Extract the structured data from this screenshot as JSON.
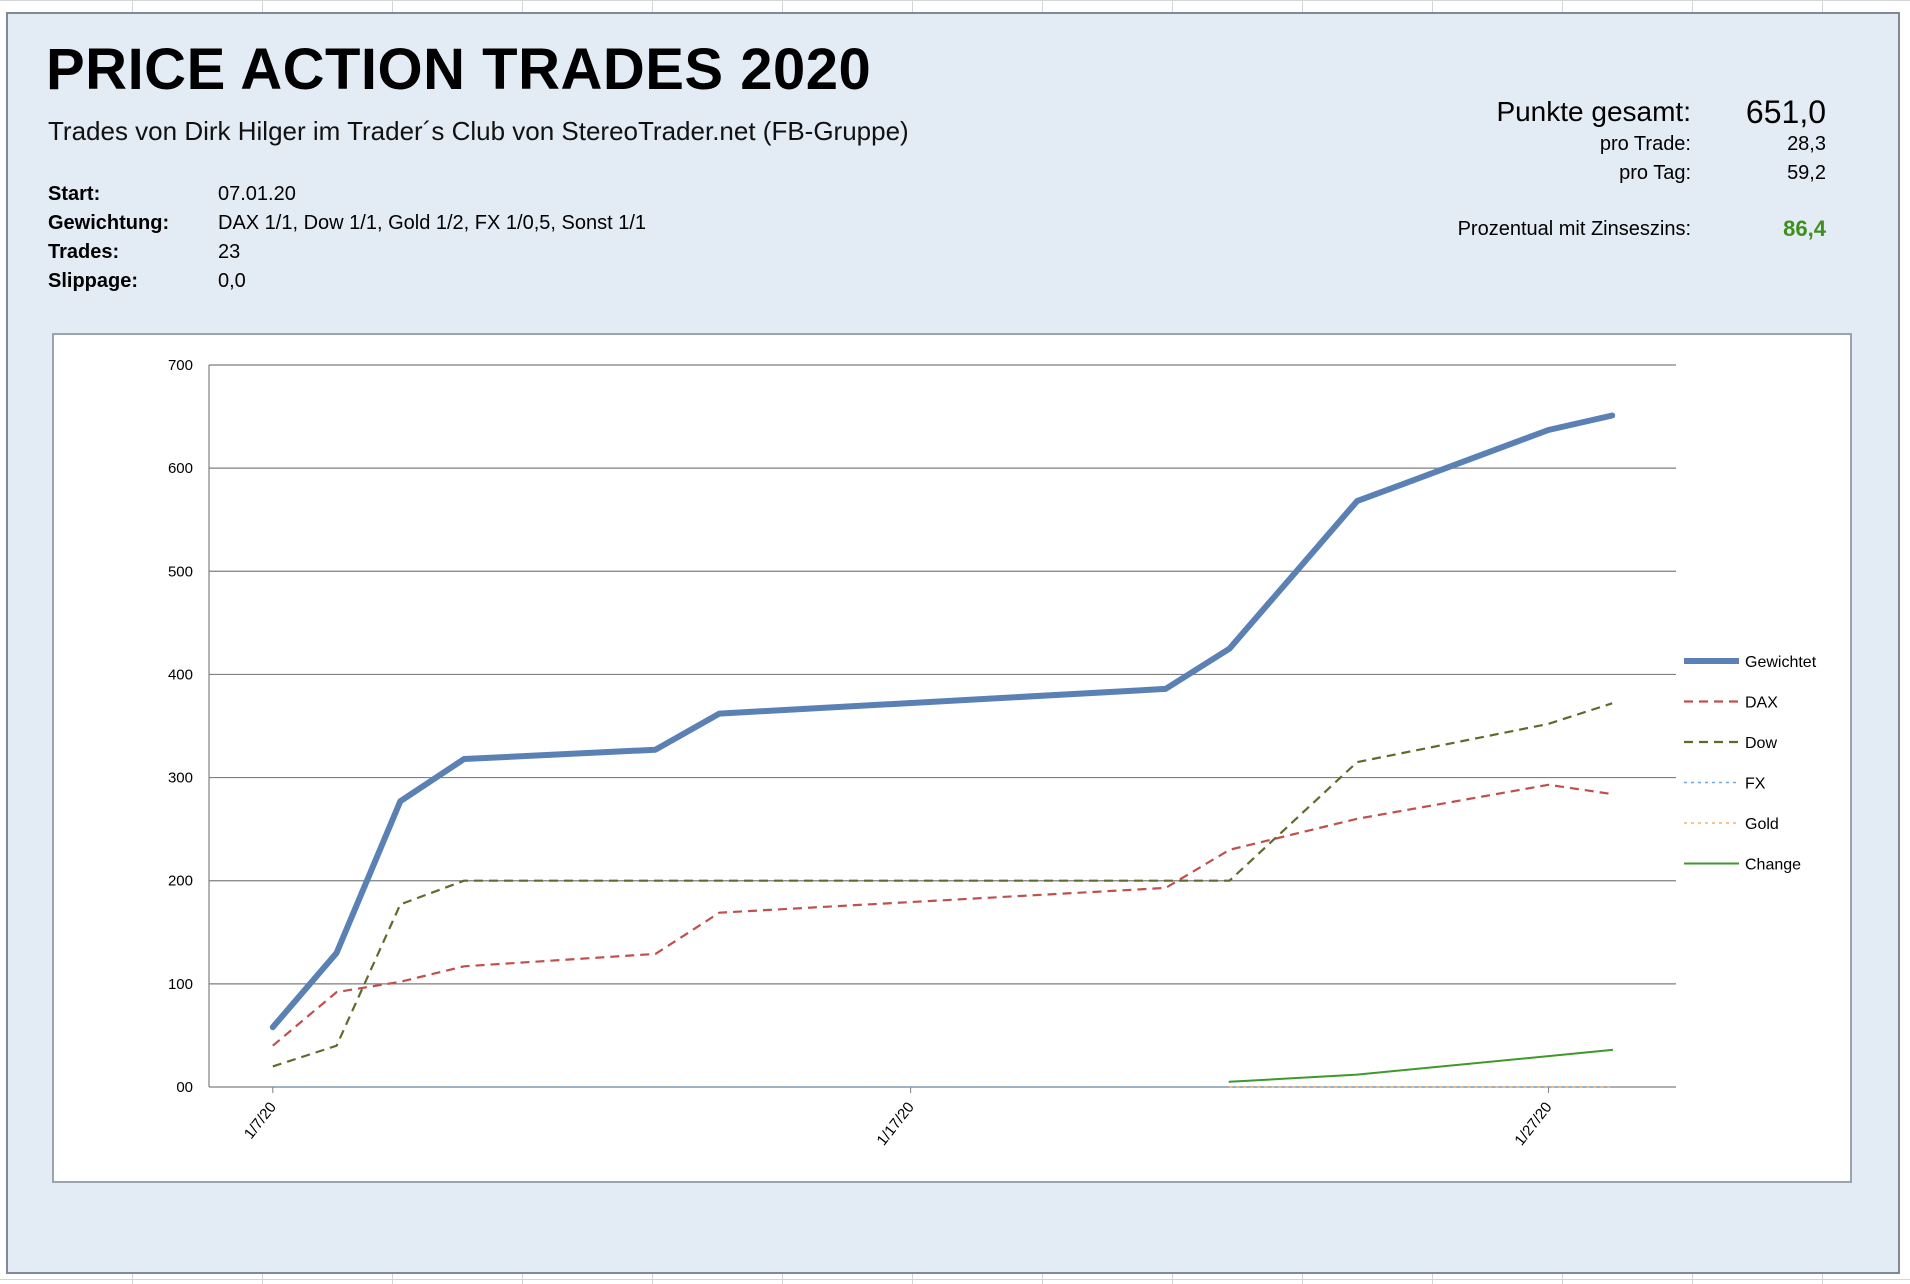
{
  "header": {
    "title": "PRICE ACTION TRADES 2020",
    "subtitle": "Trades von Dirk Hilger im Trader´s Club von StereoTrader.net (FB-Gruppe)"
  },
  "meta": [
    {
      "label": "Start:",
      "value": "07.01.20"
    },
    {
      "label": "Gewichtung:",
      "value": "DAX 1/1, Dow 1/1, Gold 1/2, FX 1/0,5, Sonst 1/1"
    },
    {
      "label": "Trades:",
      "value": "23"
    },
    {
      "label": "Slippage:",
      "value": "0,0"
    }
  ],
  "stats": {
    "total_label": "Punkte gesamt:",
    "total_value": "651,0",
    "per_trade_label": "pro Trade:",
    "per_trade_value": "28,3",
    "per_day_label": "pro Tag:",
    "per_day_value": "59,2",
    "percent_label": "Prozentual mit Zinseszins:",
    "percent_value": "86,4"
  },
  "colors": {
    "gewichtet": "#5a80b4",
    "dax": "#c0504d",
    "dow": "#5e6b2b",
    "fx": "#6fa8dc",
    "gold": "#f6b26b",
    "change": "#3d9a2a",
    "accent_green": "#3f8f1f"
  },
  "chart_data": {
    "type": "line",
    "title": "",
    "xlabel": "",
    "ylabel": "",
    "x_ticks": [
      {
        "date": "2020-01-07",
        "label": "1/7/20"
      },
      {
        "date": "2020-01-17",
        "label": "1/17/20"
      },
      {
        "date": "2020-01-27",
        "label": "1/27/20"
      }
    ],
    "xlim": [
      "2020-01-06",
      "2020-01-29"
    ],
    "y_ticks": [
      "00",
      "100",
      "200",
      "300",
      "400",
      "500",
      "600",
      "700"
    ],
    "ylim": [
      0,
      700
    ],
    "grid": "horizontal",
    "legend_position": "right",
    "series": [
      {
        "name": "Gewichtet",
        "style": "solid-thick",
        "points": [
          [
            "2020-01-07",
            58
          ],
          [
            "2020-01-08",
            130
          ],
          [
            "2020-01-09",
            277
          ],
          [
            "2020-01-10",
            318
          ],
          [
            "2020-01-13",
            327
          ],
          [
            "2020-01-14",
            362
          ],
          [
            "2020-01-21",
            386
          ],
          [
            "2020-01-22",
            425
          ],
          [
            "2020-01-24",
            568
          ],
          [
            "2020-01-27",
            637
          ],
          [
            "2020-01-28",
            651
          ]
        ]
      },
      {
        "name": "DAX",
        "style": "dashed",
        "points": [
          [
            "2020-01-07",
            40
          ],
          [
            "2020-01-08",
            92
          ],
          [
            "2020-01-09",
            102
          ],
          [
            "2020-01-10",
            117
          ],
          [
            "2020-01-13",
            129
          ],
          [
            "2020-01-14",
            169
          ],
          [
            "2020-01-21",
            193
          ],
          [
            "2020-01-22",
            230
          ],
          [
            "2020-01-24",
            260
          ],
          [
            "2020-01-27",
            293
          ],
          [
            "2020-01-28",
            284
          ]
        ]
      },
      {
        "name": "Dow",
        "style": "dashed",
        "points": [
          [
            "2020-01-07",
            20
          ],
          [
            "2020-01-08",
            40
          ],
          [
            "2020-01-09",
            177
          ],
          [
            "2020-01-10",
            200
          ],
          [
            "2020-01-13",
            200
          ],
          [
            "2020-01-14",
            200
          ],
          [
            "2020-01-21",
            200
          ],
          [
            "2020-01-22",
            200
          ],
          [
            "2020-01-24",
            315
          ],
          [
            "2020-01-27",
            352
          ],
          [
            "2020-01-28",
            372
          ]
        ]
      },
      {
        "name": "FX",
        "style": "dotted",
        "points": [
          [
            "2020-01-07",
            0
          ],
          [
            "2020-01-28",
            0
          ]
        ]
      },
      {
        "name": "Gold",
        "style": "dotted",
        "points": [
          [
            "2020-01-22",
            0
          ],
          [
            "2020-01-28",
            0
          ]
        ]
      },
      {
        "name": "Change",
        "style": "solid-thin",
        "points": [
          [
            "2020-01-22",
            5
          ],
          [
            "2020-01-24",
            12
          ],
          [
            "2020-01-27",
            30
          ],
          [
            "2020-01-28",
            36
          ]
        ]
      }
    ]
  }
}
